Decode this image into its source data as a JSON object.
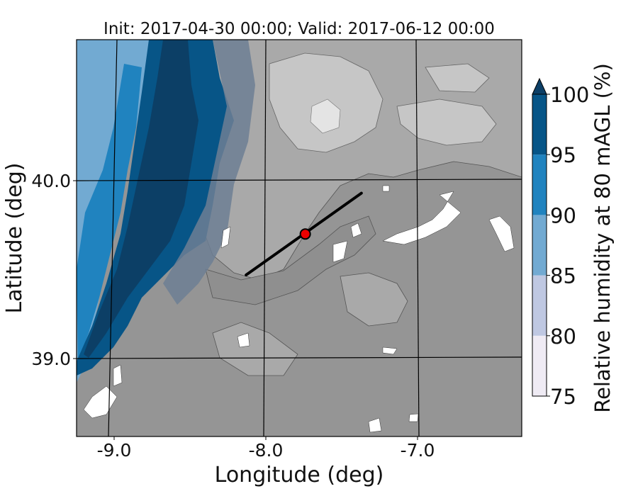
{
  "title": "Init: 2017-04-30 00:00; Valid: 2017-06-12 00:00",
  "x_axis": {
    "label": "Longitude (deg)",
    "ticks": [
      {
        "value": -9.0,
        "label": "-9.0"
      },
      {
        "value": -8.0,
        "label": "-8.0"
      },
      {
        "value": -7.0,
        "label": "-7.0"
      }
    ]
  },
  "y_axis": {
    "label": "Latitude (deg)",
    "ticks": [
      {
        "value": 40.0,
        "label": "40.0"
      },
      {
        "value": 39.0,
        "label": "39.0"
      }
    ]
  },
  "colorbar": {
    "label": "Relative humidity at 80 mAGL (%)",
    "extend": "max",
    "levels": [
      {
        "value": 75,
        "label": "75"
      },
      {
        "value": 80,
        "label": "80"
      },
      {
        "value": 85,
        "label": "85"
      },
      {
        "value": 90,
        "label": "90"
      },
      {
        "value": 95,
        "label": "95"
      },
      {
        "value": 100,
        "label": "100"
      }
    ],
    "colors": [
      "#efebf4",
      "#bfc8e2",
      "#72aad2",
      "#2083bf",
      "#075587",
      "#0c3f66"
    ]
  },
  "map_colors": {
    "terrain_low": "#959595",
    "terrain_mid": "#a9a9a9",
    "terrain_high": "#c6c6c6",
    "terrain_peak": "#e4e4e4",
    "transect_line": "#000000",
    "marker_fill": "#ee0000"
  },
  "transect": {
    "start": {
      "lon": -8.13,
      "lat": 39.47
    },
    "end": {
      "lon": -7.37,
      "lat": 39.93
    }
  },
  "site_marker": {
    "lon": -7.74,
    "lat": 39.7
  }
}
